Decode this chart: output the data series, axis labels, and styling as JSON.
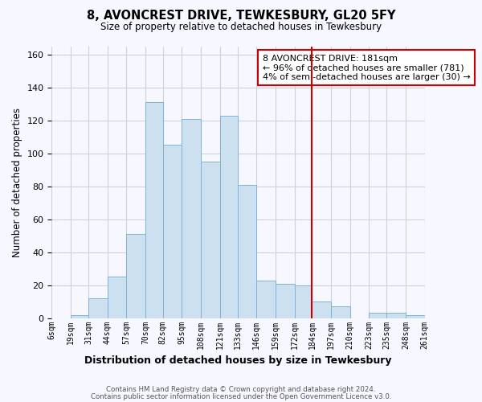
{
  "title": "8, AVONCREST DRIVE, TEWKESBURY, GL20 5FY",
  "subtitle": "Size of property relative to detached houses in Tewkesbury",
  "xlabel": "Distribution of detached houses by size in Tewkesbury",
  "ylabel": "Number of detached properties",
  "bin_labels": [
    "6sqm",
    "19sqm",
    "31sqm",
    "44sqm",
    "57sqm",
    "70sqm",
    "82sqm",
    "95sqm",
    "108sqm",
    "121sqm",
    "133sqm",
    "146sqm",
    "159sqm",
    "172sqm",
    "184sqm",
    "197sqm",
    "210sqm",
    "223sqm",
    "235sqm",
    "248sqm",
    "261sqm"
  ],
  "bin_edges": [
    6,
    19,
    31,
    44,
    57,
    70,
    82,
    95,
    108,
    121,
    133,
    146,
    159,
    172,
    184,
    197,
    210,
    223,
    235,
    248,
    261
  ],
  "bar_heights": [
    0,
    2,
    12,
    25,
    51,
    131,
    105,
    121,
    95,
    123,
    81,
    23,
    21,
    20,
    10,
    7,
    0,
    3,
    3,
    2
  ],
  "bar_color": "#cde0f0",
  "bar_edgecolor": "#7cb4d8",
  "vline_x": 184,
  "vline_color": "#cc0000",
  "annotation_text": "8 AVONCREST DRIVE: 181sqm\n← 96% of detached houses are smaller (781)\n4% of semi-detached houses are larger (30) →",
  "annotation_box_edgecolor": "#cc0000",
  "ylim": [
    0,
    165
  ],
  "yticks": [
    0,
    20,
    40,
    60,
    80,
    100,
    120,
    140,
    160
  ],
  "footer_line1": "Contains HM Land Registry data © Crown copyright and database right 2024.",
  "footer_line2": "Contains public sector information licensed under the Open Government Licence v3.0.",
  "bg_color": "#f7f7ff",
  "grid_color": "#d0d0d8"
}
